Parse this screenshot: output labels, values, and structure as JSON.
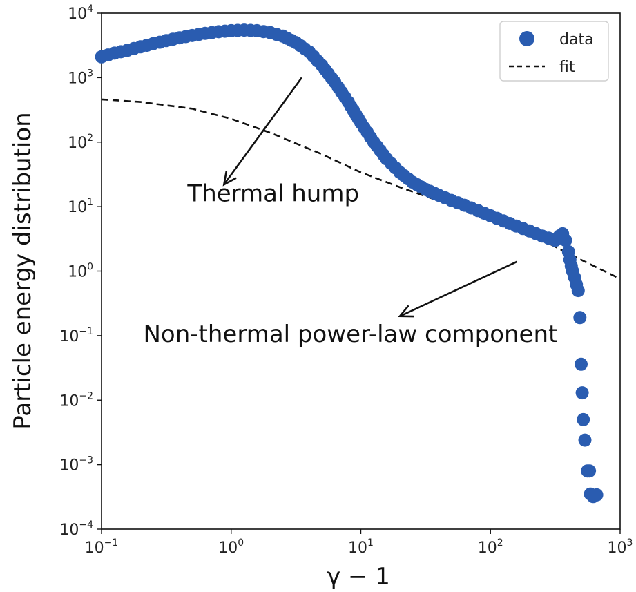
{
  "chart_data": {
    "type": "scatter",
    "xlabel": "γ − 1",
    "ylabel": "Particle energy distribution",
    "x_scale": "log",
    "y_scale": "log",
    "xlim": [
      0.1,
      1000
    ],
    "ylim": [
      0.0001,
      10000
    ],
    "grid": false,
    "legend_position": "top-right",
    "x_ticks": [
      {
        "base": "10",
        "exp": "−1",
        "value": 0.1
      },
      {
        "base": "10",
        "exp": "0",
        "value": 1
      },
      {
        "base": "10",
        "exp": "1",
        "value": 10
      },
      {
        "base": "10",
        "exp": "2",
        "value": 100
      },
      {
        "base": "10",
        "exp": "3",
        "value": 1000
      }
    ],
    "y_ticks": [
      {
        "base": "10",
        "exp": "−4",
        "value": 0.0001
      },
      {
        "base": "10",
        "exp": "−3",
        "value": 0.001
      },
      {
        "base": "10",
        "exp": "−2",
        "value": 0.01
      },
      {
        "base": "10",
        "exp": "−1",
        "value": 0.1
      },
      {
        "base": "10",
        "exp": "0",
        "value": 1
      },
      {
        "base": "10",
        "exp": "1",
        "value": 10
      },
      {
        "base": "10",
        "exp": "2",
        "value": 100
      },
      {
        "base": "10",
        "exp": "3",
        "value": 1000
      },
      {
        "base": "10",
        "exp": "4",
        "value": 10000
      }
    ],
    "series": [
      {
        "name": "data",
        "kind": "markers",
        "color": "#2a5cb0",
        "points": [
          [
            0.1,
            2100
          ],
          [
            0.126,
            2400
          ],
          [
            0.158,
            2650
          ],
          [
            0.2,
            3000
          ],
          [
            0.25,
            3350
          ],
          [
            0.316,
            3750
          ],
          [
            0.4,
            4150
          ],
          [
            0.5,
            4500
          ],
          [
            0.63,
            4850
          ],
          [
            0.8,
            5150
          ],
          [
            1.0,
            5350
          ],
          [
            1.26,
            5450
          ],
          [
            1.58,
            5350
          ],
          [
            2.0,
            5000
          ],
          [
            2.5,
            4400
          ],
          [
            3.16,
            3500
          ],
          [
            4.0,
            2500
          ],
          [
            5.0,
            1550
          ],
          [
            6.3,
            850
          ],
          [
            8.0,
            420
          ],
          [
            10.0,
            200
          ],
          [
            12.6,
            100
          ],
          [
            15.8,
            55
          ],
          [
            20.0,
            34
          ],
          [
            25.0,
            24
          ],
          [
            31.6,
            18.5
          ],
          [
            40.0,
            15
          ],
          [
            50.0,
            12.5
          ],
          [
            63.0,
            10.5
          ],
          [
            80.0,
            8.7
          ],
          [
            100.0,
            7.2
          ],
          [
            126.0,
            6.0
          ],
          [
            158.0,
            5.0
          ],
          [
            200.0,
            4.2
          ],
          [
            250.0,
            3.5
          ],
          [
            316.0,
            3.0
          ],
          [
            340.0,
            3.5
          ],
          [
            360.0,
            3.8
          ],
          [
            380.0,
            3.0
          ],
          [
            400.0,
            2.0
          ],
          [
            410.0,
            1.5
          ],
          [
            420.0,
            1.2
          ],
          [
            430.0,
            1.0
          ],
          [
            445.0,
            0.8
          ],
          [
            460.0,
            0.62
          ],
          [
            475.0,
            0.5
          ],
          [
            490.0,
            0.19
          ],
          [
            500.0,
            0.036
          ],
          [
            510.0,
            0.013
          ],
          [
            520.0,
            0.005
          ],
          [
            535.0,
            0.0024
          ],
          [
            560.0,
            0.0008
          ],
          [
            580.0,
            0.0008
          ],
          [
            590.0,
            0.00035
          ],
          [
            620.0,
            0.00032
          ],
          [
            660.0,
            0.00034
          ]
        ]
      },
      {
        "name": "fit",
        "kind": "dashed-line",
        "color": "#111111",
        "points": [
          [
            0.1,
            460
          ],
          [
            0.2,
            420
          ],
          [
            0.5,
            330
          ],
          [
            1.0,
            230
          ],
          [
            2.0,
            140
          ],
          [
            5.0,
            65
          ],
          [
            10.0,
            34
          ],
          [
            20.0,
            20
          ],
          [
            50.0,
            10.5
          ],
          [
            100.0,
            6.5
          ],
          [
            200.0,
            3.8
          ],
          [
            500.0,
            1.5
          ],
          [
            1000.0,
            0.76
          ]
        ]
      }
    ],
    "annotations": [
      {
        "text": "Thermal hump",
        "text_at": [
          0.46,
          12
        ],
        "arrow_from": [
          3.5,
          1000
        ],
        "arrow_to": [
          0.88,
          22
        ]
      },
      {
        "text": "Non-thermal power-law component",
        "text_at": [
          0.21,
          0.08
        ],
        "arrow_from": [
          160,
          1.4
        ],
        "arrow_to": [
          20,
          0.2
        ]
      }
    ]
  }
}
